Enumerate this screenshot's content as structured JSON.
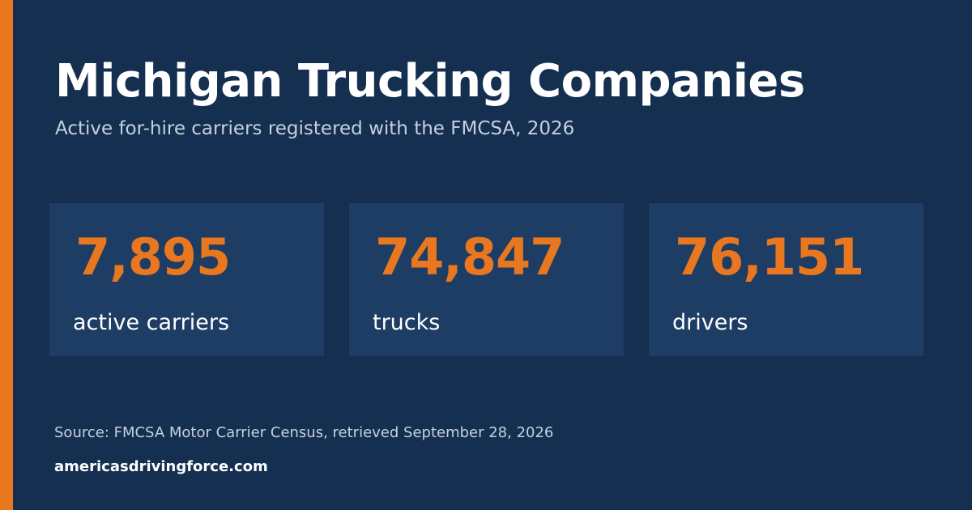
{
  "header": {
    "title": "Michigan Trucking Companies",
    "subtitle": "Active for-hire carriers registered with the FMCSA, 2026"
  },
  "stats": [
    {
      "value": "7,895",
      "label": "active carriers"
    },
    {
      "value": "74,847",
      "label": "trucks"
    },
    {
      "value": "76,151",
      "label": "drivers"
    }
  ],
  "footer": {
    "source": "Source: FMCSA Motor Carrier Census, retrieved September 28, 2026",
    "site": "americasdrivingforce.com"
  }
}
